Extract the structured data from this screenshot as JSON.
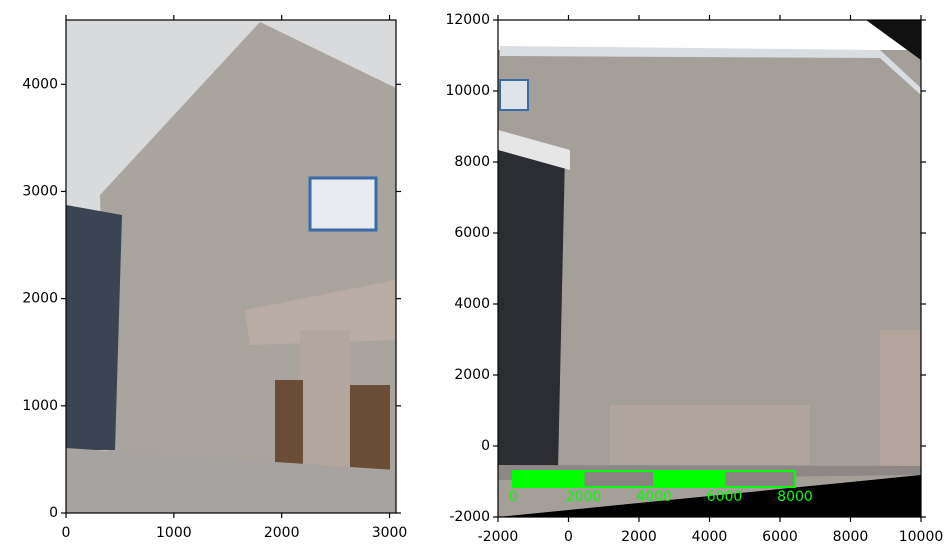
{
  "chart_data": [
    {
      "type": "image",
      "xlim": [
        0,
        3060
      ],
      "ylim": [
        0,
        4600
      ],
      "xticks": [
        0,
        1000,
        2000,
        3000
      ],
      "yticks": [
        0,
        1000,
        2000,
        3000,
        4000
      ]
    },
    {
      "type": "image",
      "xlim": [
        -2000,
        10000
      ],
      "ylim": [
        -2000,
        12000
      ],
      "xticks": [
        -2000,
        0,
        2000,
        4000,
        6000,
        8000,
        10000
      ],
      "yticks": [
        -2000,
        0,
        2000,
        4000,
        6000,
        8000,
        10000,
        12000
      ],
      "scale_bar": {
        "ticks": [
          0,
          2000,
          4000,
          6000,
          8000
        ],
        "color": "#00ff00"
      }
    }
  ]
}
